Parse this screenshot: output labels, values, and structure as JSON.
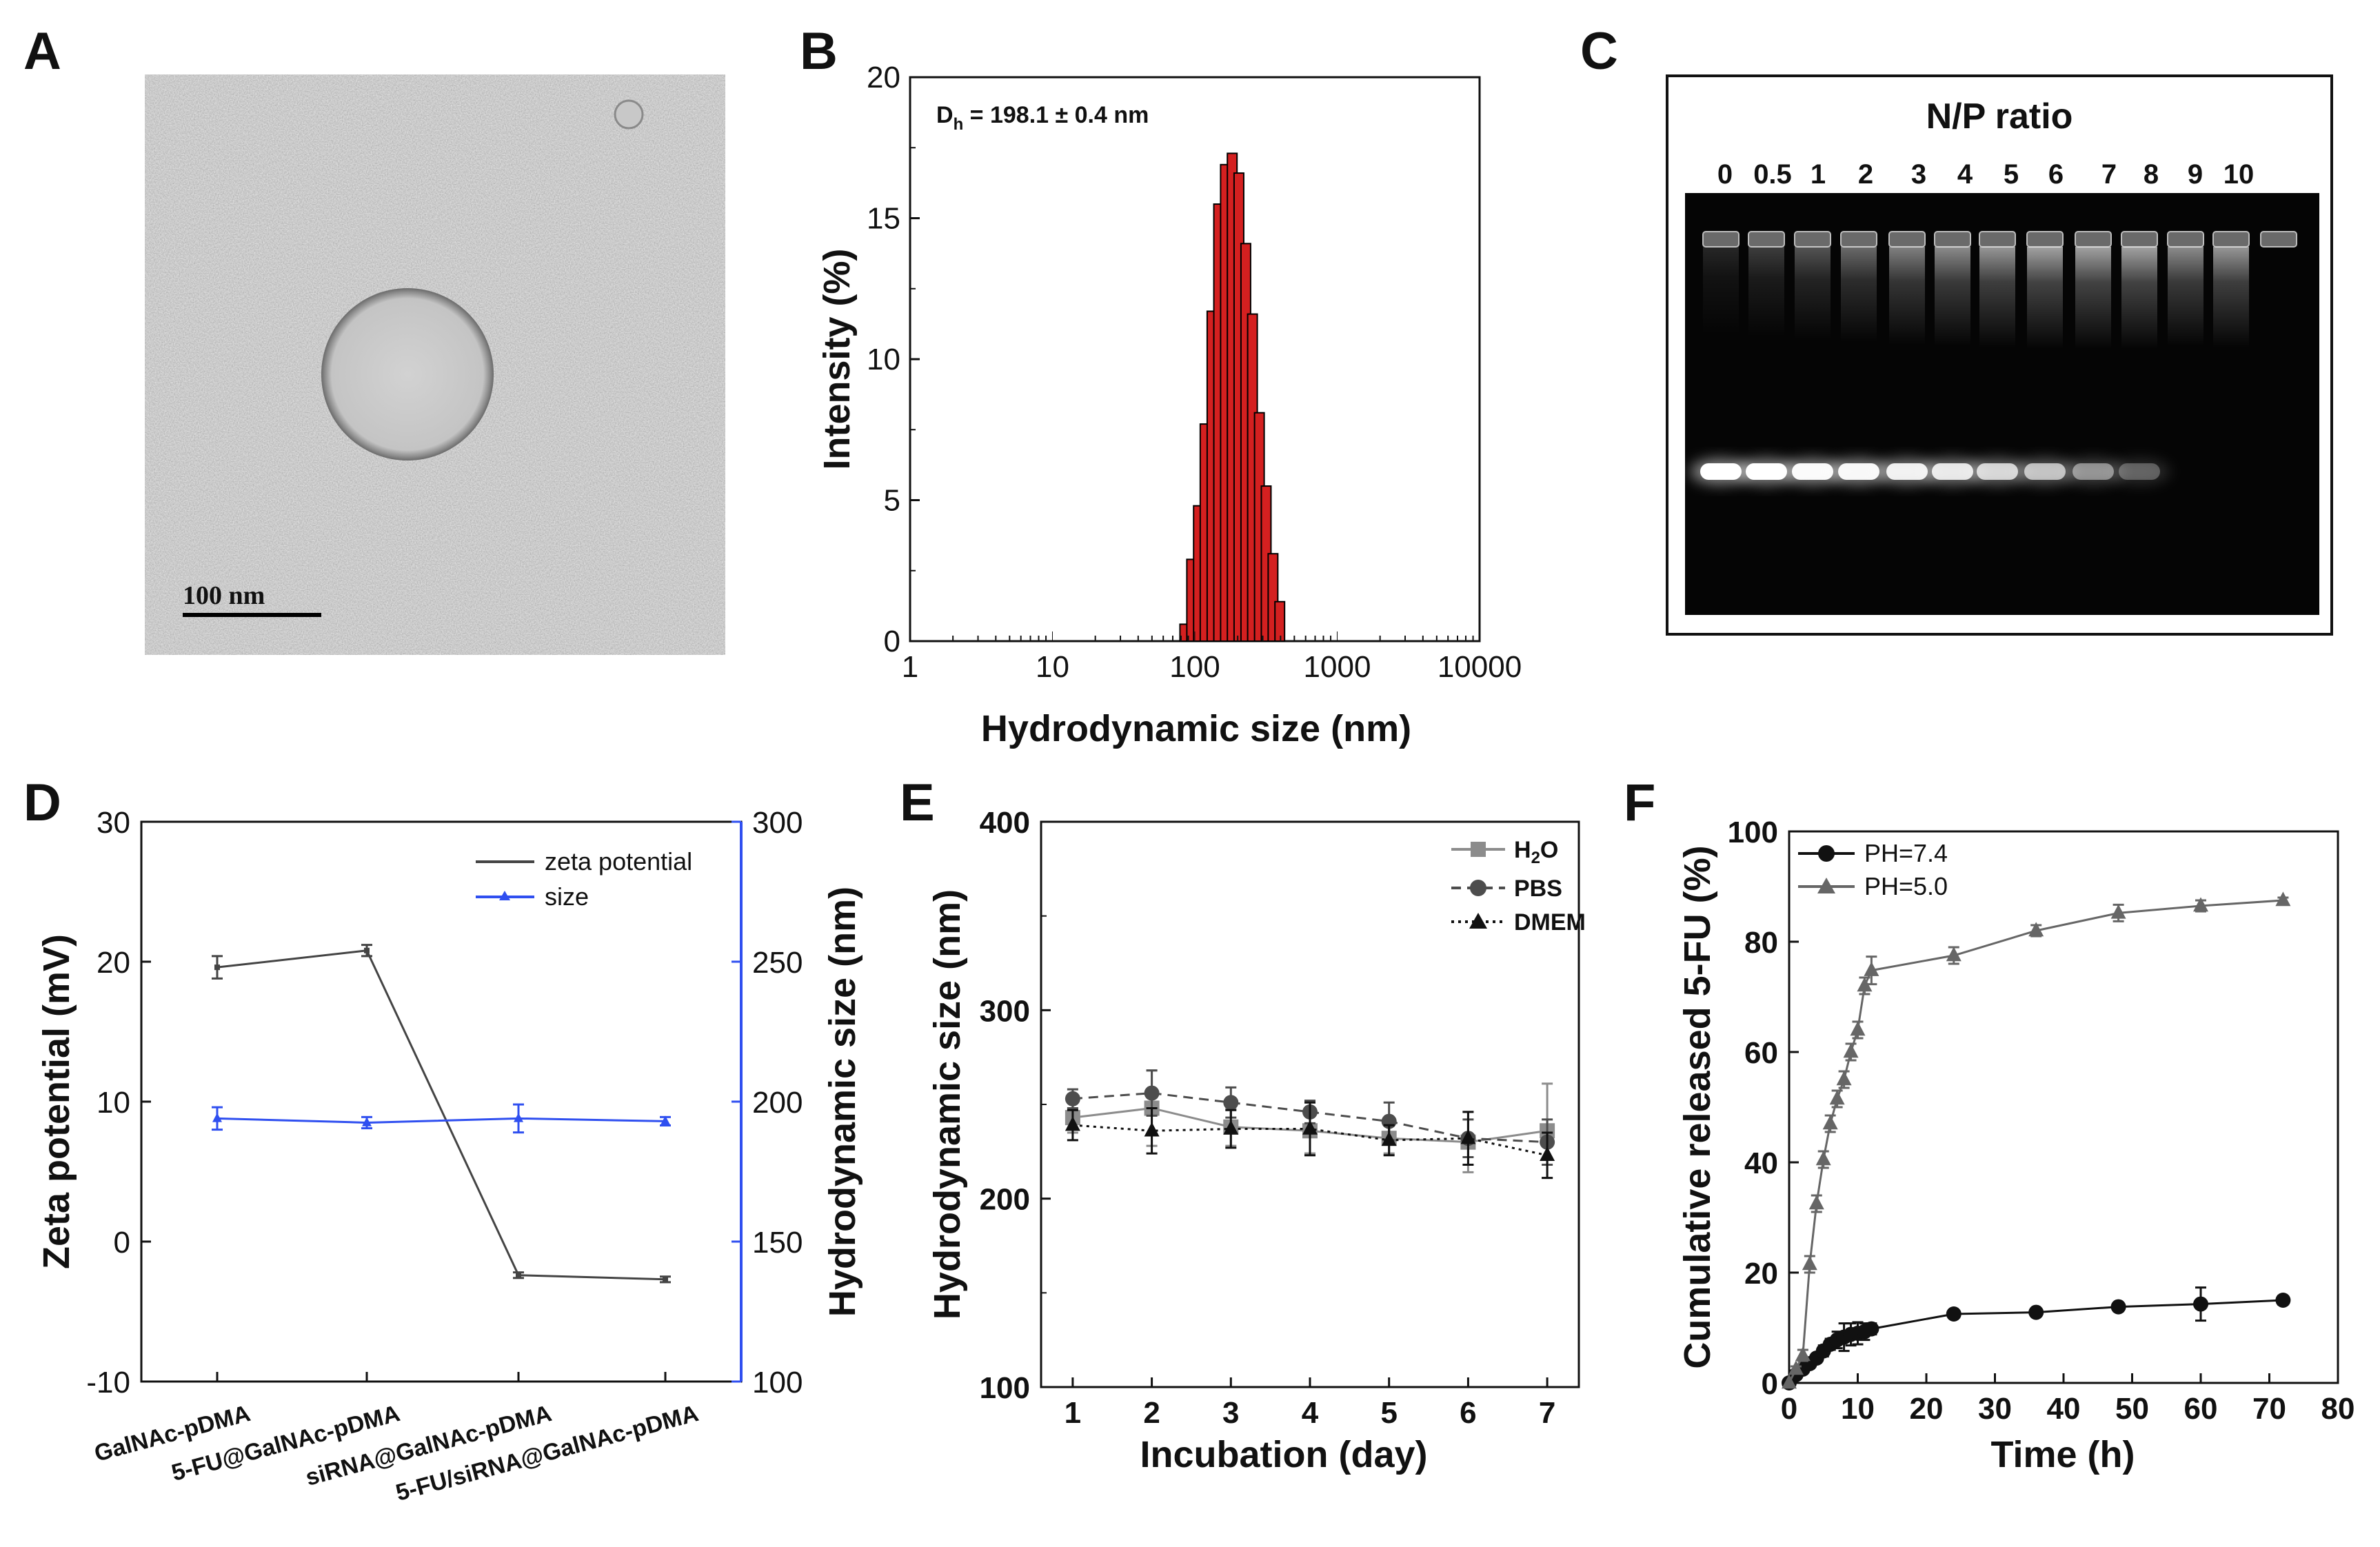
{
  "panel_labels": {
    "a": "A",
    "b": "B",
    "c": "C",
    "d": "D",
    "e": "E",
    "f": "F"
  },
  "tem": {
    "scale_bar_label": "100 nm"
  },
  "gel": {
    "title": "N/P ratio",
    "lanes": [
      "0",
      "0.5",
      "1",
      "2",
      "3",
      "4",
      "5",
      "6",
      "7",
      "8",
      "9",
      "10"
    ],
    "band_intensity": [
      1.0,
      1.0,
      0.97,
      0.95,
      0.9,
      0.85,
      0.75,
      0.65,
      0.45,
      0.28,
      0,
      0
    ],
    "smear_intensity": [
      0.15,
      0.25,
      0.35,
      0.45,
      0.55,
      0.6,
      0.65,
      0.7,
      0.7,
      0.7,
      0.6,
      0.65
    ]
  },
  "chart_data": [
    {
      "panel": "B",
      "type": "bar",
      "title": "",
      "xlabel": "Hydrodynamic size (nm)",
      "ylabel": "Intensity (%)",
      "xscale": "log",
      "xlim": [
        1,
        10000
      ],
      "ylim": [
        0,
        20
      ],
      "xticks": [
        "1",
        "10",
        "100",
        "1000",
        "10000"
      ],
      "yticks": [
        "0",
        "5",
        "10",
        "15",
        "20"
      ],
      "annotation_main": "D",
      "annotation_sub": "h",
      "annotation_rest": " = 198.1 ± 0.4 nm",
      "x": [
        85,
        95,
        106,
        118,
        132,
        147,
        164,
        183,
        204,
        228,
        254,
        284,
        317,
        354,
        395
      ],
      "values": [
        0.6,
        2.9,
        4.8,
        7.7,
        11.7,
        15.5,
        16.9,
        17.3,
        16.6,
        14.1,
        11.6,
        8.1,
        5.5,
        3.1,
        1.4
      ],
      "color": "#d42020"
    },
    {
      "panel": "D",
      "type": "line",
      "xlabel": "",
      "ylabel": "Zeta potential (mV)",
      "ylabel_right": "Hydrodynamic size (nm)",
      "categories": [
        "GalNAc-pDMA",
        "5-FU@GalNAc-pDMA",
        "siRNA@GalNAc-pDMA",
        "5-FU/siRNA@GalNAc-pDMA"
      ],
      "ylim": [
        -10,
        30
      ],
      "ylim_right": [
        100,
        300
      ],
      "yticks": [
        "-10",
        "0",
        "10",
        "20",
        "30"
      ],
      "yticks_right": [
        "100",
        "150",
        "200",
        "250",
        "300"
      ],
      "series": [
        {
          "name": "zeta potential",
          "axis": "left",
          "values": [
            19.6,
            20.8,
            -2.4,
            -2.7
          ],
          "errors": [
            0.8,
            0.4,
            0.2,
            0.2
          ],
          "color": "#444444"
        },
        {
          "name": "size",
          "axis": "right",
          "values": [
            194.0,
            192.5,
            194.0,
            193.0
          ],
          "errors": [
            4,
            2,
            5,
            1.5
          ],
          "color": "#2f4ff0"
        }
      ]
    },
    {
      "panel": "E",
      "type": "line",
      "xlabel": "Incubation (day)",
      "ylabel": "Hydrodynamic size (nm)",
      "x": [
        1,
        2,
        3,
        4,
        5,
        6,
        7
      ],
      "xlim": [
        0.6,
        7.4
      ],
      "ylim": [
        100,
        400
      ],
      "xticks": [
        "1",
        "2",
        "3",
        "4",
        "5",
        "6",
        "7"
      ],
      "yticks": [
        "100",
        "200",
        "300",
        "400"
      ],
      "series": [
        {
          "name": "H2O",
          "label_main": "H",
          "label_sub": "2",
          "label_rest": "O",
          "values": [
            243,
            248,
            238,
            236,
            232,
            230,
            236
          ],
          "errors": [
            8,
            20,
            10,
            12,
            8,
            16,
            25
          ],
          "color": "#8c8c8c",
          "dash": "",
          "marker": "square"
        },
        {
          "name": "PBS",
          "label_main": "PBS",
          "values": [
            253,
            256,
            251,
            246,
            241,
            232,
            230
          ],
          "errors": [
            5,
            12,
            8,
            6,
            10,
            10,
            12
          ],
          "color": "#4d4d4d",
          "dash": "14,9",
          "marker": "circle"
        },
        {
          "name": "DMEM",
          "label_main": "DMEM",
          "values": [
            239,
            236,
            237,
            237,
            231,
            232,
            223
          ],
          "errors": [
            8,
            12,
            10,
            14,
            8,
            14,
            12
          ],
          "color": "#111111",
          "dash": "4,6",
          "marker": "triangle"
        }
      ]
    },
    {
      "panel": "F",
      "type": "line",
      "xlabel": "Time (h)",
      "ylabel": "Cumulative released 5-FU (%)",
      "xlim": [
        0,
        80
      ],
      "ylim": [
        0,
        100
      ],
      "xticks": [
        "0",
        "10",
        "20",
        "30",
        "40",
        "50",
        "60",
        "70",
        "80"
      ],
      "yticks": [
        "0",
        "20",
        "40",
        "60",
        "80",
        "100"
      ],
      "series": [
        {
          "name": "PH=7.4",
          "x": [
            0,
            1,
            2,
            3,
            4,
            5,
            6,
            7,
            8,
            9,
            10,
            11,
            12,
            24,
            36,
            48,
            60,
            72
          ],
          "values": [
            0,
            1.5,
            2.5,
            3.5,
            4.5,
            5.8,
            7.0,
            7.8,
            8.3,
            8.8,
            9.0,
            9.3,
            9.8,
            12.5,
            12.8,
            13.8,
            14.3,
            15.0
          ],
          "errors": [
            0,
            0.5,
            0.5,
            0.8,
            0.8,
            1,
            1,
            1.5,
            2.5,
            2,
            2,
            1.5,
            1,
            0.5,
            0.5,
            0.8,
            3,
            0.8
          ],
          "color": "#111111",
          "marker": "circle"
        },
        {
          "name": "PH=5.0",
          "x": [
            0,
            1,
            2,
            3,
            4,
            5,
            6,
            7,
            8,
            9,
            10,
            11,
            12,
            24,
            36,
            48,
            60,
            72
          ],
          "values": [
            0,
            2.5,
            5.0,
            21.5,
            32.5,
            40.5,
            47.0,
            51.5,
            55.0,
            60.0,
            64.0,
            72.0,
            74.8,
            77.5,
            82.0,
            85.2,
            86.5,
            87.5
          ],
          "errors": [
            0,
            0.5,
            1,
            1.5,
            1.5,
            1.5,
            1.5,
            1.5,
            1.5,
            1.5,
            1.5,
            1.5,
            2.5,
            1.5,
            1,
            1.5,
            1,
            0.5
          ],
          "color": "#666666",
          "marker": "triangle"
        }
      ]
    }
  ]
}
